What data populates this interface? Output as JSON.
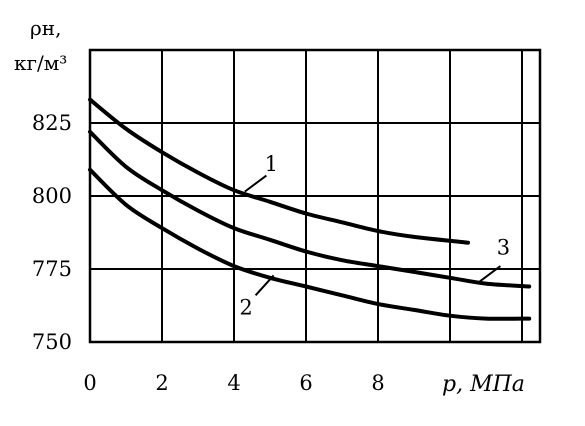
{
  "chart_data": {
    "type": "line",
    "ylabel_line1": "ρн,",
    "ylabel_line2": "кг/м³",
    "xlabel": "p, МПа",
    "xlim": [
      0,
      12.5
    ],
    "ylim": [
      750,
      850
    ],
    "x_ticks": [
      "0",
      "2",
      "4",
      "6",
      "8"
    ],
    "y_ticks": [
      "750",
      "775",
      "800",
      "825"
    ],
    "grid": true,
    "series": [
      {
        "name": "1",
        "x": [
          0,
          1,
          2,
          3,
          4,
          5,
          6,
          7,
          8,
          9,
          10.5
        ],
        "y": [
          833,
          823,
          815,
          808,
          802,
          798,
          794,
          791,
          788,
          786,
          784
        ]
      },
      {
        "name": "3",
        "x": [
          0,
          1,
          2,
          3,
          4,
          5,
          6,
          7,
          8,
          9,
          10,
          11,
          12.2
        ],
        "y": [
          822,
          810,
          802,
          795,
          789,
          785,
          781,
          778,
          776,
          774,
          772,
          770,
          769
        ]
      },
      {
        "name": "2",
        "x": [
          0,
          1,
          2,
          3,
          4,
          5,
          6,
          7,
          8,
          9,
          10,
          11,
          12.2
        ],
        "y": [
          809,
          797,
          789,
          782,
          776,
          772,
          769,
          766,
          763,
          761,
          759,
          758,
          758
        ]
      }
    ]
  }
}
